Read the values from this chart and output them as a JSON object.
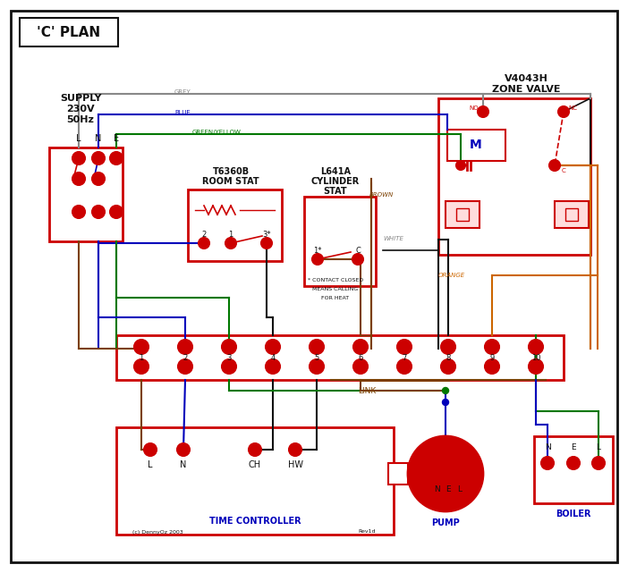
{
  "bg_color": "#ffffff",
  "red": "#cc0000",
  "blue": "#0000bb",
  "green": "#007700",
  "brown": "#7b3f00",
  "grey": "#888888",
  "orange": "#cc6600",
  "black": "#111111",
  "pink_box": "#ffcccc",
  "title": "'C' PLAN",
  "supply_label": "SUPPLY\n230V\n50Hz",
  "zone_valve_label": "V4043H\nZONE VALVE",
  "room_stat_label": "T6360B\nROOM STAT",
  "cyl_stat_label": "L641A\nCYLINDER\nSTAT",
  "tc_label": "TIME CONTROLLER",
  "pump_label": "PUMP",
  "boiler_label": "BOILER"
}
